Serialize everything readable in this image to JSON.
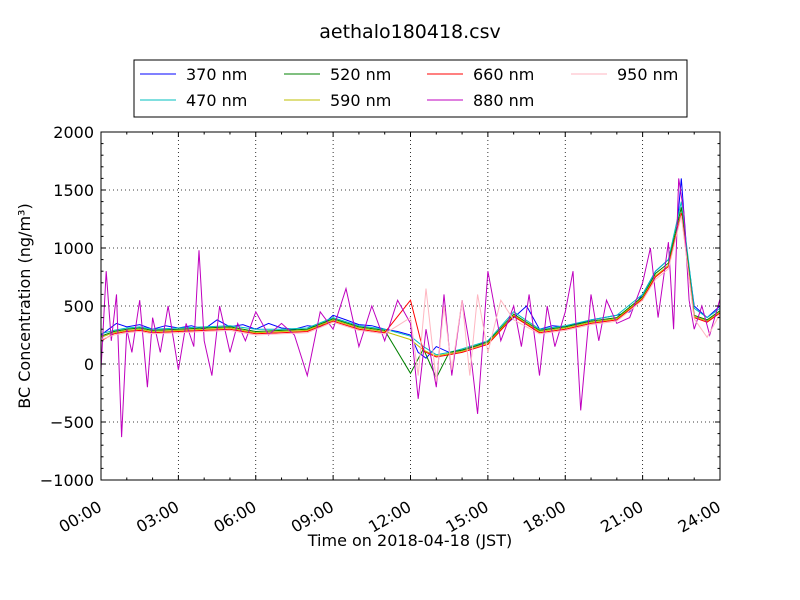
{
  "chart_data": {
    "type": "line",
    "title": "aethalo180418.csv",
    "xlabel": "Time on 2018-04-18 (JST)",
    "ylabel": "BC Concentration (ng/m³)",
    "xlim": [
      0,
      24
    ],
    "ylim": [
      -1000,
      2000
    ],
    "x_unit": "hours",
    "grid": true,
    "grid_style": "dotted",
    "legend_placement": "top-center, above plot",
    "legend_columns": 4,
    "x_ticks": [
      {
        "value": 0,
        "label": "00:00"
      },
      {
        "value": 3,
        "label": "03:00"
      },
      {
        "value": 6,
        "label": "06:00"
      },
      {
        "value": 9,
        "label": "09:00"
      },
      {
        "value": 12,
        "label": "12:00"
      },
      {
        "value": 15,
        "label": "15:00"
      },
      {
        "value": 18,
        "label": "18:00"
      },
      {
        "value": 21,
        "label": "21:00"
      },
      {
        "value": 24,
        "label": "24:00"
      }
    ],
    "y_ticks": [
      {
        "value": -1000,
        "label": "−1000"
      },
      {
        "value": -500,
        "label": "−500"
      },
      {
        "value": 0,
        "label": "0"
      },
      {
        "value": 500,
        "label": "500"
      },
      {
        "value": 1000,
        "label": "1000"
      },
      {
        "value": 1500,
        "label": "1500"
      },
      {
        "value": 2000,
        "label": "2000"
      }
    ],
    "series": [
      {
        "name": "370 nm",
        "color": "#0000ff",
        "x": [
          0,
          0.3,
          0.6,
          1,
          1.5,
          2,
          2.5,
          3,
          3.5,
          4,
          4.5,
          5,
          5.5,
          6,
          6.5,
          7,
          7.5,
          8,
          8.5,
          9,
          9.5,
          10,
          10.5,
          11,
          11.5,
          12,
          12.3,
          12.6,
          13,
          13.5,
          14,
          14.5,
          15,
          15.5,
          16,
          16.5,
          17,
          17.5,
          18,
          18.5,
          19,
          19.5,
          20,
          20.5,
          21,
          21.5,
          22,
          22.3,
          22.5,
          22.7,
          23,
          23.5,
          24
        ],
        "y": [
          250,
          300,
          350,
          320,
          340,
          300,
          330,
          310,
          330,
          300,
          380,
          320,
          340,
          300,
          350,
          310,
          300,
          330,
          320,
          420,
          380,
          340,
          330,
          300,
          280,
          250,
          100,
          50,
          150,
          100,
          120,
          150,
          200,
          300,
          400,
          500,
          300,
          330,
          320,
          350,
          380,
          400,
          420,
          450,
          600,
          800,
          900,
          1100,
          1600,
          1000,
          500,
          400,
          500
        ]
      },
      {
        "name": "470 nm",
        "color": "#00bfbf",
        "x": [
          0,
          0.5,
          1,
          1.5,
          2,
          3,
          4,
          5,
          6,
          7,
          8,
          9,
          10,
          11,
          12,
          12.5,
          13,
          13.5,
          14,
          15,
          16,
          17,
          18,
          19,
          20,
          21,
          21.5,
          22,
          22.5,
          23,
          23.5,
          24
        ],
        "y": [
          260,
          290,
          310,
          320,
          300,
          310,
          320,
          330,
          300,
          300,
          310,
          400,
          330,
          300,
          240,
          150,
          80,
          100,
          130,
          200,
          450,
          300,
          330,
          380,
          420,
          600,
          800,
          900,
          1400,
          480,
          400,
          480
        ]
      },
      {
        "name": "520 nm",
        "color": "#008000",
        "x": [
          0,
          0.5,
          1,
          1.5,
          2,
          3,
          4,
          5,
          6,
          7,
          8,
          9,
          10,
          11,
          12,
          12.5,
          13,
          13.5,
          14,
          15,
          16,
          17,
          18,
          19,
          20,
          21,
          21.5,
          22,
          22.5,
          23,
          23.5,
          24
        ],
        "y": [
          240,
          280,
          300,
          310,
          290,
          300,
          310,
          320,
          280,
          290,
          300,
          390,
          320,
          290,
          -80,
          130,
          -120,
          100,
          120,
          190,
          430,
          290,
          320,
          370,
          400,
          580,
          780,
          870,
          1350,
          420,
          380,
          460
        ]
      },
      {
        "name": "590 nm",
        "color": "#bfbf00",
        "x": [
          0,
          0.5,
          1,
          1.5,
          2,
          3,
          4,
          5,
          6,
          7,
          8,
          9,
          10,
          11,
          12,
          12.5,
          13,
          13.5,
          14,
          15,
          16,
          17,
          18,
          19,
          20,
          21,
          21.5,
          22,
          22.5,
          23,
          23.5,
          24
        ],
        "y": [
          230,
          270,
          290,
          300,
          280,
          290,
          300,
          310,
          270,
          280,
          290,
          380,
          310,
          280,
          210,
          120,
          70,
          90,
          110,
          180,
          420,
          280,
          310,
          360,
          390,
          570,
          760,
          850,
          1300,
          410,
          370,
          450
        ]
      },
      {
        "name": "660 nm",
        "color": "#ff0000",
        "x": [
          0,
          0.5,
          1,
          1.5,
          2,
          3,
          4,
          5,
          6,
          7,
          8,
          9,
          10,
          11,
          12,
          12.5,
          13,
          13.5,
          14,
          15,
          16,
          17,
          18,
          19,
          20,
          21,
          21.5,
          22,
          22.5,
          23,
          23.5,
          24
        ],
        "y": [
          200,
          260,
          280,
          290,
          270,
          280,
          290,
          300,
          260,
          270,
          280,
          370,
          300,
          270,
          550,
          110,
          60,
          80,
          100,
          170,
          410,
          270,
          300,
          350,
          380,
          560,
          750,
          840,
          1300,
          400,
          360,
          440
        ]
      },
      {
        "name": "880 nm",
        "color": "#bf00bf",
        "x": [
          0,
          0.2,
          0.4,
          0.6,
          0.8,
          1,
          1.2,
          1.5,
          1.8,
          2,
          2.3,
          2.6,
          3,
          3.3,
          3.6,
          3.8,
          4,
          4.3,
          4.6,
          5,
          5.3,
          5.6,
          6,
          6.5,
          7,
          7.5,
          8,
          8.5,
          9,
          9.5,
          10,
          10.5,
          11,
          11.5,
          12,
          12.3,
          12.6,
          13,
          13.3,
          13.6,
          14,
          14.3,
          14.6,
          15,
          15.5,
          16,
          16.3,
          16.6,
          17,
          17.3,
          17.6,
          18,
          18.3,
          18.6,
          19,
          19.3,
          19.6,
          20,
          20.5,
          21,
          21.3,
          21.6,
          22,
          22.2,
          22.4,
          22.6,
          22.8,
          23,
          23.3,
          23.6,
          24
        ],
        "y": [
          -50,
          800,
          200,
          600,
          -630,
          300,
          100,
          550,
          -200,
          400,
          100,
          500,
          -50,
          350,
          150,
          980,
          200,
          -100,
          500,
          100,
          350,
          200,
          450,
          250,
          350,
          250,
          -100,
          450,
          300,
          650,
          150,
          500,
          200,
          550,
          350,
          -300,
          300,
          -200,
          600,
          -100,
          550,
          150,
          -430,
          800,
          200,
          500,
          150,
          600,
          -100,
          500,
          150,
          450,
          800,
          -400,
          600,
          200,
          550,
          350,
          400,
          700,
          1000,
          400,
          1050,
          300,
          1600,
          1300,
          550,
          300,
          500,
          250,
          560
        ]
      },
      {
        "name": "950 nm",
        "color": "#ffb6c1",
        "x": [
          0,
          0.5,
          1,
          1.5,
          2,
          3,
          4,
          5,
          6,
          7,
          8,
          9,
          10,
          11,
          12,
          12.3,
          12.6,
          13,
          13.3,
          13.6,
          14,
          14.3,
          14.6,
          15,
          15.5,
          16,
          17,
          18,
          19,
          20,
          21,
          21.5,
          22,
          22.5,
          23,
          23.5,
          24
        ],
        "y": [
          210,
          250,
          270,
          280,
          260,
          270,
          280,
          290,
          250,
          260,
          270,
          360,
          290,
          260,
          400,
          -100,
          650,
          -150,
          500,
          -50,
          550,
          -100,
          600,
          100,
          550,
          380,
          260,
          290,
          340,
          370,
          550,
          730,
          820,
          1280,
          390,
          230,
          430
        ]
      }
    ]
  }
}
